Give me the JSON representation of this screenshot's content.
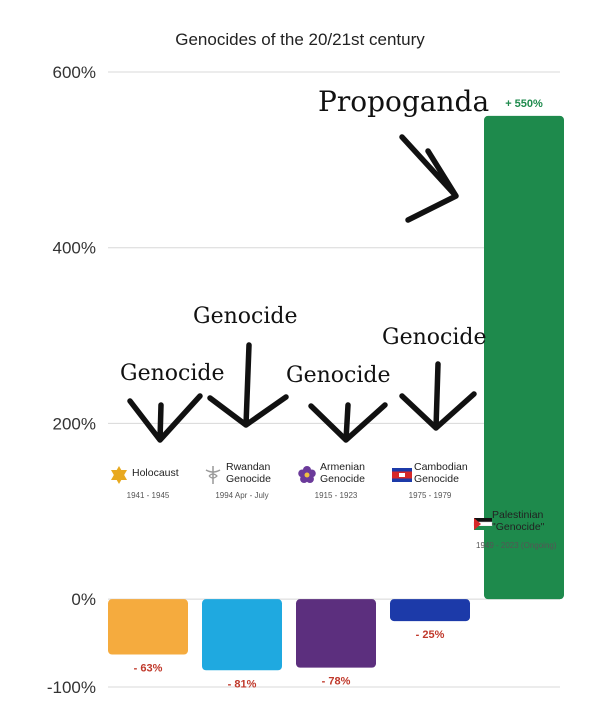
{
  "chart_data": {
    "type": "bar",
    "title": "Genocides of the 20/21st century",
    "xlabel": "",
    "ylabel": "",
    "ylim": [
      -100,
      600
    ],
    "y_ticks": [
      "600%",
      "400%",
      "200%",
      "0%",
      "-100%"
    ],
    "y_tick_values": [
      600,
      400,
      200,
      0,
      -100
    ],
    "grid": true,
    "categories": [
      {
        "label": [
          "Holocaust"
        ],
        "dates": "1941 - 1945",
        "value": -63,
        "value_label": "- 63%",
        "color": "#f5ab3e",
        "icon": "star-of-david-icon"
      },
      {
        "label": [
          "Rwandan",
          "Genocide"
        ],
        "dates": "1994 Apr - July",
        "value": -81,
        "value_label": "- 81%",
        "color": "#1fa9e0",
        "icon": "caduceus-icon"
      },
      {
        "label": [
          "Armenian",
          "Genocide"
        ],
        "dates": "1915 - 1923",
        "value": -78,
        "value_label": "- 78%",
        "color": "#5c2f7e",
        "icon": "forget-me-not-icon"
      },
      {
        "label": [
          "Cambodian",
          "Genocide"
        ],
        "dates": "1975 - 1979",
        "value": -25,
        "value_label": "- 25%",
        "color": "#1c3aa9",
        "icon": "cambodia-flag-icon"
      },
      {
        "label": [
          "Palestinian",
          "\"Genocide\""
        ],
        "dates": "1949 - 2023 (Ongoing)",
        "value": 550,
        "value_label": "+ 550%",
        "color": "#1e8a4c",
        "icon": "palestine-flag-icon"
      }
    ],
    "annotations": {
      "genocide": "Genocide",
      "propaganda": "Propoganda"
    }
  }
}
